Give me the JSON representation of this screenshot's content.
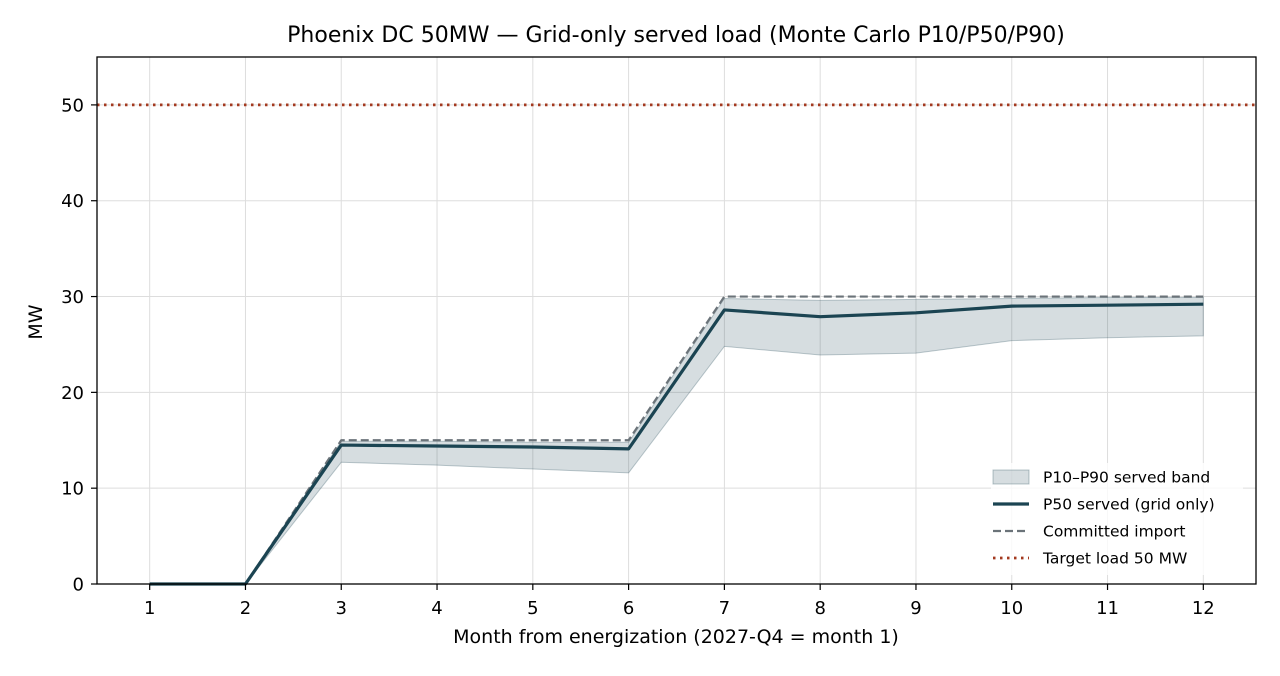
{
  "chart_data": {
    "type": "line",
    "title": "Phoenix DC 50MW — Grid-only served load (Monte Carlo P10/P50/P90)",
    "xlabel": "Month from energization (2027-Q4 = month 1)",
    "ylabel": "MW",
    "xlim": [
      0.45,
      12.55
    ],
    "ylim": [
      0,
      55
    ],
    "x": [
      1,
      2,
      3,
      4,
      5,
      6,
      7,
      8,
      9,
      10,
      11,
      12
    ],
    "x_ticks": [
      1,
      2,
      3,
      4,
      5,
      6,
      7,
      8,
      9,
      10,
      11,
      12
    ],
    "y_ticks": [
      0,
      10,
      20,
      30,
      40,
      50
    ],
    "grid": true,
    "legend_position": "lower-right",
    "band": {
      "name": "P10–P90 served band",
      "lower": [
        0,
        0,
        12.7,
        12.4,
        12.0,
        11.6,
        24.8,
        23.9,
        24.1,
        25.4,
        25.7,
        25.9
      ],
      "upper": [
        0,
        0,
        14.9,
        14.9,
        14.8,
        14.8,
        29.8,
        29.6,
        29.7,
        29.8,
        29.9,
        29.9
      ],
      "color": "#1b4452"
    },
    "series": [
      {
        "name": "P50 served (grid only)",
        "values": [
          0,
          0,
          14.5,
          14.4,
          14.3,
          14.1,
          28.6,
          27.9,
          28.3,
          29.0,
          29.1,
          29.2
        ],
        "color": "#1b4452",
        "style": "solid"
      },
      {
        "name": "Committed import",
        "values": [
          0,
          0,
          15,
          15,
          15,
          15,
          30,
          30,
          30,
          30,
          30,
          30
        ],
        "color": "#6b7379",
        "style": "dashed"
      }
    ],
    "reference_lines": [
      {
        "name": "Target load 50 MW",
        "y": 50,
        "color": "#a3391f",
        "style": "dotted"
      }
    ]
  }
}
